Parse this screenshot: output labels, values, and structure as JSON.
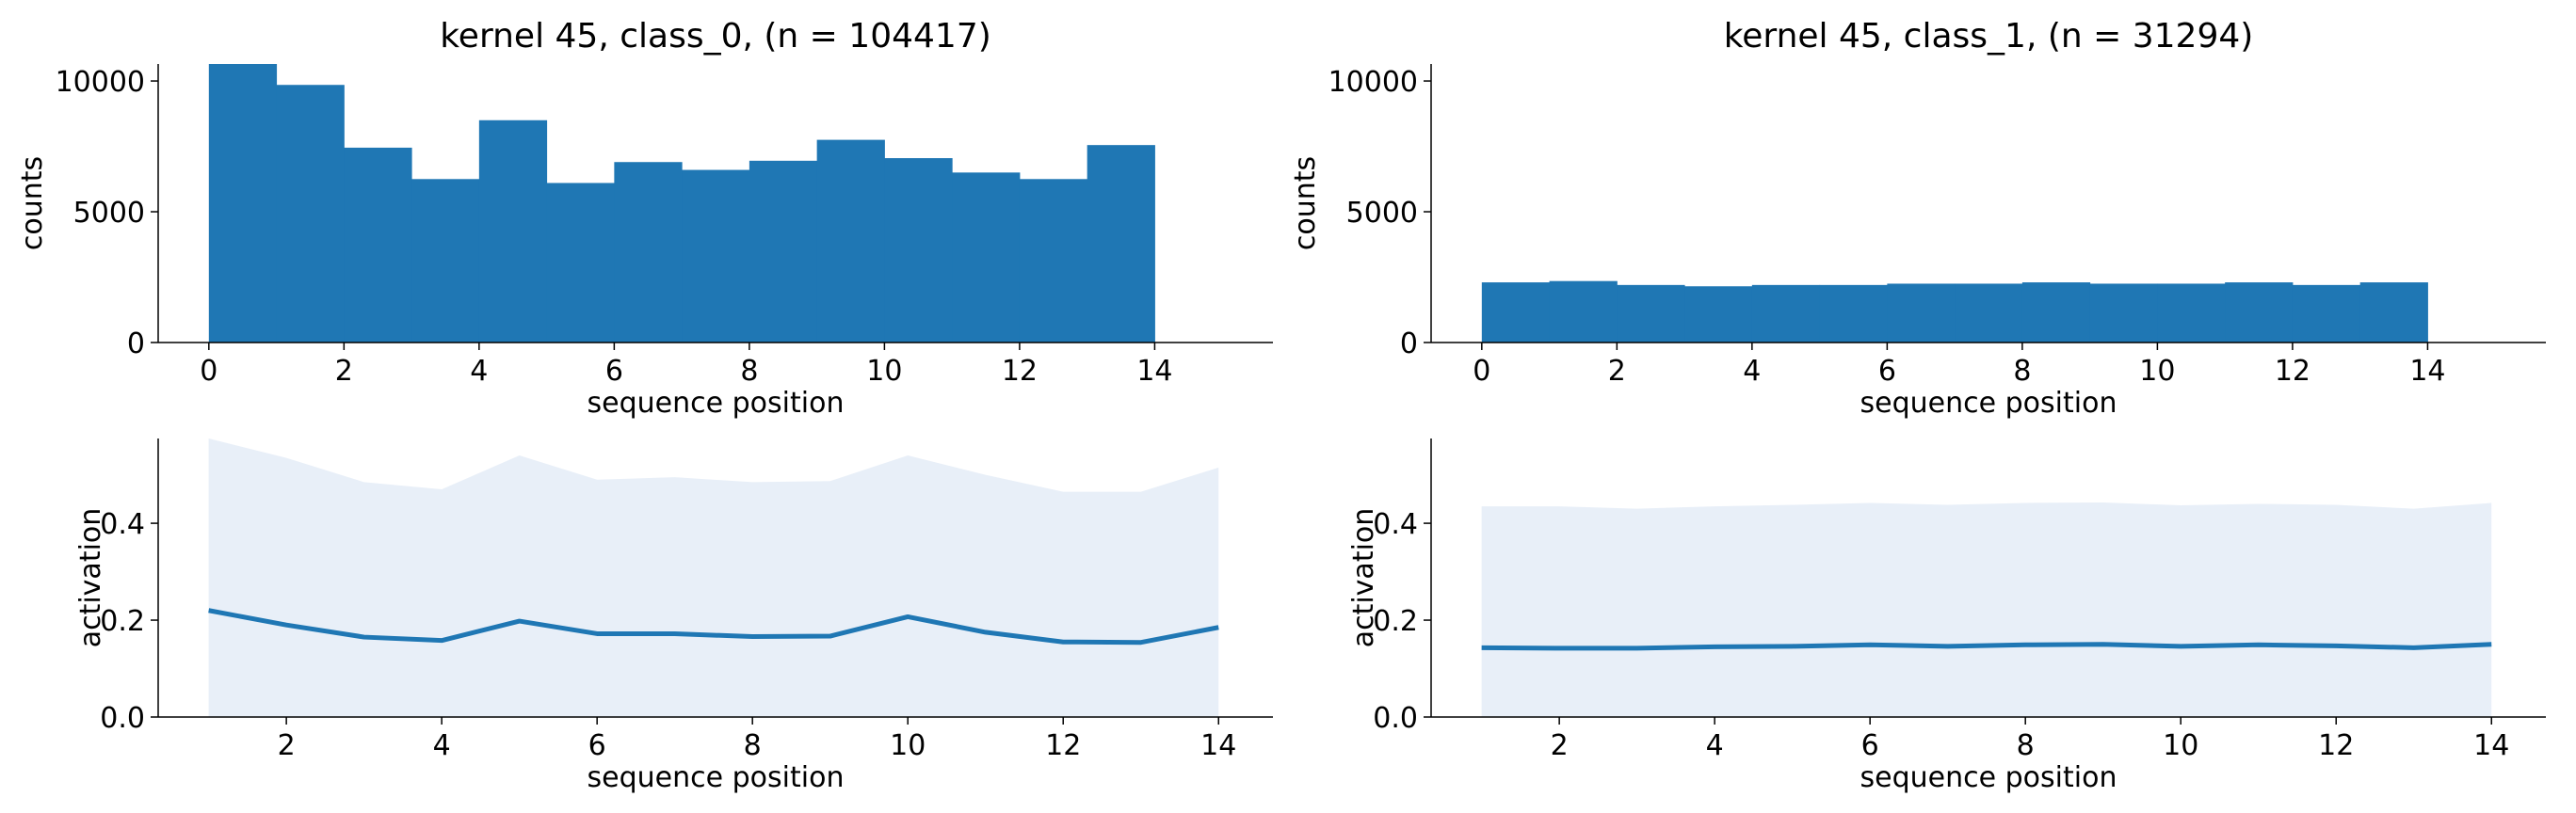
{
  "chart_data": [
    {
      "panel": "top-left",
      "type": "bar",
      "title": "kernel 45, class_0, (n = 104417)",
      "xlabel": "sequence position",
      "ylabel": "counts",
      "color": "#1f77b4",
      "bin_edges": [
        0,
        1,
        2,
        3,
        4,
        5,
        6,
        7,
        8,
        9,
        10,
        11,
        12,
        13,
        14
      ],
      "values": [
        10650,
        9850,
        7450,
        6250,
        8500,
        6100,
        6900,
        6600,
        6950,
        7750,
        7050,
        6500,
        6250,
        7550
      ],
      "xlim": [
        -0.75,
        15.75
      ],
      "ylim": [
        0,
        10650
      ],
      "xticks": [
        "0",
        "2",
        "4",
        "6",
        "8",
        "10",
        "12",
        "14"
      ],
      "yticks": [
        "0",
        "5000",
        "10000"
      ]
    },
    {
      "panel": "top-right",
      "type": "bar",
      "title": "kernel 45, class_1, (n = 31294)",
      "xlabel": "sequence position",
      "ylabel": "counts",
      "color": "#1f77b4",
      "bin_edges": [
        0,
        1,
        2,
        3,
        4,
        5,
        6,
        7,
        8,
        9,
        10,
        11,
        12,
        13,
        14
      ],
      "values": [
        2300,
        2350,
        2200,
        2150,
        2200,
        2200,
        2250,
        2250,
        2300,
        2250,
        2250,
        2300,
        2200,
        2300
      ],
      "xlim": [
        -0.75,
        15.75
      ],
      "ylim": [
        0,
        10650
      ],
      "xticks": [
        "0",
        "2",
        "4",
        "6",
        "8",
        "10",
        "12",
        "14"
      ],
      "yticks": [
        "0",
        "5000",
        "10000"
      ]
    },
    {
      "panel": "bottom-left",
      "type": "area",
      "title": "",
      "xlabel": "sequence position",
      "ylabel": "activation",
      "line_color": "#1f77b4",
      "band_color": "#e8eff8",
      "x": [
        1,
        2,
        3,
        4,
        5,
        6,
        7,
        8,
        9,
        10,
        11,
        12,
        13,
        14
      ],
      "mean": [
        0.22,
        0.19,
        0.165,
        0.158,
        0.198,
        0.172,
        0.172,
        0.166,
        0.167,
        0.207,
        0.175,
        0.155,
        0.154,
        0.185
      ],
      "upper": [
        0.575,
        0.535,
        0.485,
        0.47,
        0.54,
        0.49,
        0.495,
        0.485,
        0.487,
        0.54,
        0.5,
        0.465,
        0.465,
        0.515
      ],
      "lower": [
        0,
        0,
        0,
        0,
        0,
        0,
        0,
        0,
        0,
        0,
        0,
        0,
        0,
        0
      ],
      "xlim": [
        0.35,
        14.7
      ],
      "ylim": [
        0,
        0.575
      ],
      "xticks": [
        "2",
        "4",
        "6",
        "8",
        "10",
        "12",
        "14"
      ],
      "yticks": [
        "0.0",
        "0.2",
        "0.4"
      ]
    },
    {
      "panel": "bottom-right",
      "type": "area",
      "title": "",
      "xlabel": "sequence position",
      "ylabel": "activation",
      "line_color": "#1f77b4",
      "band_color": "#e8eff8",
      "x": [
        1,
        2,
        3,
        4,
        5,
        6,
        7,
        8,
        9,
        10,
        11,
        12,
        13,
        14
      ],
      "mean": [
        0.143,
        0.142,
        0.142,
        0.145,
        0.146,
        0.149,
        0.146,
        0.149,
        0.15,
        0.146,
        0.149,
        0.147,
        0.143,
        0.15
      ],
      "upper": [
        0.435,
        0.435,
        0.43,
        0.435,
        0.438,
        0.442,
        0.438,
        0.442,
        0.443,
        0.437,
        0.44,
        0.438,
        0.43,
        0.442
      ],
      "lower": [
        0,
        0,
        0,
        0,
        0,
        0,
        0,
        0,
        0,
        0,
        0,
        0,
        0,
        0
      ],
      "xlim": [
        0.35,
        14.7
      ],
      "ylim": [
        0,
        0.575
      ],
      "xticks": [
        "2",
        "4",
        "6",
        "8",
        "10",
        "12",
        "14"
      ],
      "yticks": [
        "0.0",
        "0.2",
        "0.4"
      ]
    }
  ]
}
